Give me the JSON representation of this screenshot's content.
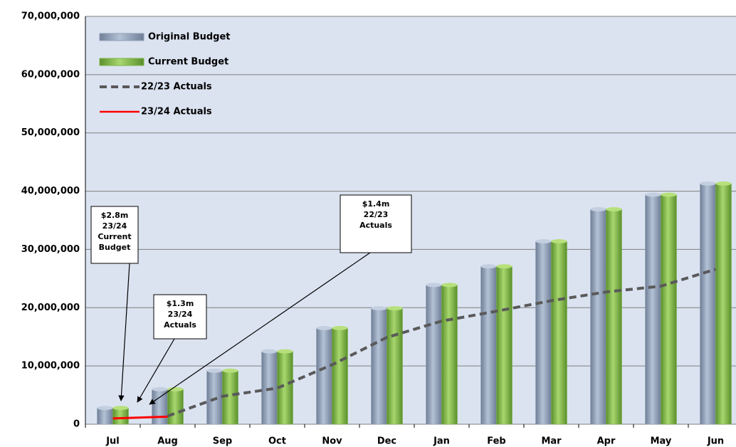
{
  "chart_data": {
    "type": "bar",
    "categories": [
      "Jul",
      "Aug",
      "Sep",
      "Oct",
      "Nov",
      "Dec",
      "Jan",
      "Feb",
      "Mar",
      "Apr",
      "May",
      "Jun"
    ],
    "series": [
      {
        "name": "Original Budget",
        "type": "bar",
        "color": "#8e9db5",
        "values": [
          2800000.0,
          6000000.0,
          9200000.0,
          12500000.0,
          16500000.0,
          19900000.0,
          23900000.0,
          27100000.0,
          31400000.0,
          36900000.0,
          39400000.0,
          41300000.0
        ]
      },
      {
        "name": "Current Budget",
        "type": "bar",
        "color": "#7db544",
        "values": [
          2800000.0,
          6000000.0,
          9200000.0,
          12500000.0,
          16500000.0,
          19900000.0,
          23900000.0,
          27100000.0,
          31400000.0,
          36900000.0,
          39400000.0,
          41300000.0
        ]
      },
      {
        "name": "22/23 Actuals",
        "type": "line",
        "dashed": true,
        "color": "#595959",
        "values": [
          null,
          1400000.0,
          4800000.0,
          6200000.0,
          10200000.0,
          14900000.0,
          17700000.0,
          19400000.0,
          21200000.0,
          22700000.0,
          23700000.0,
          26600000.0
        ]
      },
      {
        "name": "23/24 Actuals",
        "type": "line",
        "dashed": false,
        "color": "#ff0000",
        "values": [
          1000000.0,
          1300000.0,
          null,
          null,
          null,
          null,
          null,
          null,
          null,
          null,
          null,
          null
        ]
      }
    ],
    "ylim": [
      0,
      70000000
    ],
    "yticks": [
      0,
      {
        "value": 10000000,
        "label": "10,000,000"
      },
      {
        "value": 20000000,
        "label": "20,000,000"
      },
      {
        "value": 30000000,
        "label": "30,000,000"
      },
      {
        "value": 40000000,
        "label": "40,000,000"
      },
      {
        "value": 50000000,
        "label": "50,000,000"
      },
      {
        "value": 60000000,
        "label": "60,000,000"
      },
      {
        "value": 70000000,
        "label": "70,000,000"
      }
    ],
    "grid": true,
    "legend": "top-left",
    "annotations": [
      [
        "$2.8m",
        "23/24",
        "Current",
        "Budget"
      ],
      [
        "$1.3m",
        "23/24",
        "Actuals"
      ],
      [
        "$1.4m",
        "22/23",
        "Actuals"
      ]
    ]
  }
}
